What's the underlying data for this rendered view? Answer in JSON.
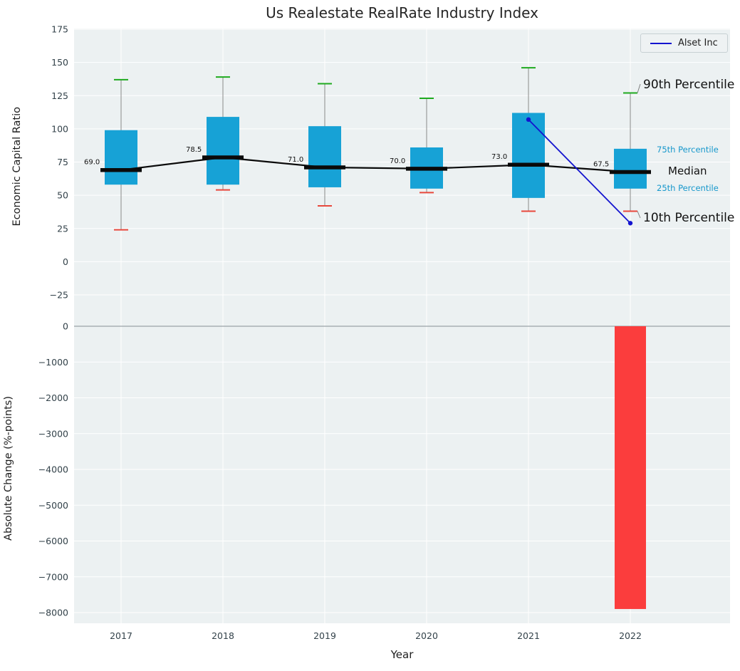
{
  "title": "Us Realestate RealRate Industry Index",
  "legend": {
    "label": "Alset Inc"
  },
  "annotations": {
    "p90": "90th Percentile",
    "p75": "75th Percentile",
    "median": "Median",
    "p25": "25th Percentile",
    "p10": "10th Percentile"
  },
  "colors": {
    "panel_bg": "#ecf1f2",
    "grid": "#ffffff",
    "box_fill": "#17a2d6",
    "whisker": "#8a8a8a",
    "cap_top": "#1faa1f",
    "cap_bottom": "#e8483c",
    "median": "#0a0a0a",
    "alset_line": "#1414cf",
    "bar_negative": "#fb3d3d",
    "tick_text": "#33424a",
    "zero_line": "#9aa3a7",
    "connector": "#777777"
  },
  "chart_data": [
    {
      "type": "boxplot",
      "title": "Us Realestate RealRate Industry Index",
      "xlabel": "Year",
      "ylabel": "Economic Capital Ratio",
      "ylim": [
        -48,
        178
      ],
      "yticks": [
        175,
        150,
        125,
        100,
        75,
        50,
        25,
        0,
        -25
      ],
      "categories": [
        "2017",
        "2018",
        "2019",
        "2020",
        "2021",
        "2022"
      ],
      "boxes": [
        {
          "year": "2017",
          "p10": 24,
          "p25": 58,
          "median": 69.0,
          "p75": 99,
          "p90": 137
        },
        {
          "year": "2018",
          "p10": 54,
          "p25": 58,
          "median": 78.5,
          "p75": 109,
          "p90": 139
        },
        {
          "year": "2019",
          "p10": 42,
          "p25": 56,
          "median": 71.0,
          "p75": 102,
          "p90": 134
        },
        {
          "year": "2020",
          "p10": 52,
          "p25": 55,
          "median": 70.0,
          "p75": 86,
          "p90": 123
        },
        {
          "year": "2021",
          "p10": 38,
          "p25": 48,
          "median": 73.0,
          "p75": 112,
          "p90": 146
        },
        {
          "year": "2022",
          "p10": 38,
          "p25": 55,
          "median": 67.5,
          "p75": 85,
          "p90": 127
        }
      ],
      "series": [
        {
          "name": "Alset Inc",
          "x": [
            "2021",
            "2022"
          ],
          "y": [
            107,
            29
          ]
        }
      ],
      "legend_position": "upper right",
      "grid": true
    },
    {
      "type": "bar",
      "xlabel": "Year",
      "ylabel": "Absolute Change (%-points)",
      "ylim": [
        -8300,
        0
      ],
      "yticks": [
        0,
        -1000,
        -2000,
        -3000,
        -4000,
        -5000,
        -6000,
        -7000,
        -8000
      ],
      "categories": [
        "2017",
        "2018",
        "2019",
        "2020",
        "2021",
        "2022"
      ],
      "values": [
        0,
        0,
        0,
        0,
        0,
        -7900
      ],
      "grid": true
    }
  ]
}
